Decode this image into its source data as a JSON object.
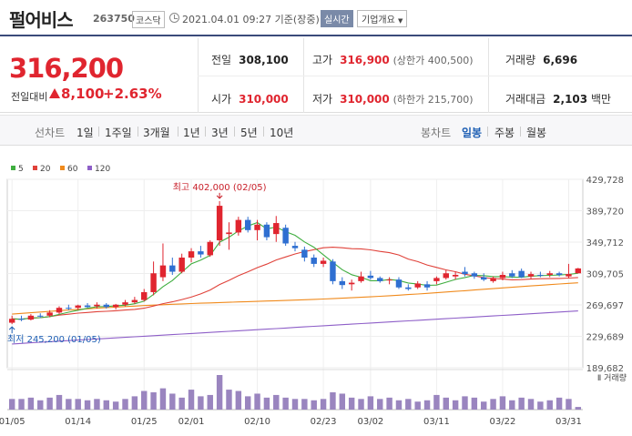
{
  "header": {
    "company": "펄어비스",
    "code": "263750",
    "market": "코스닥",
    "time": "2021.04.01 09:27 기준(장중)",
    "realtime": "실시간",
    "company_info": "기업개요",
    "icons": [
      "clock-icon",
      "chevron-down-icon"
    ]
  },
  "price": {
    "current": "316,200",
    "change_label": "전일대비",
    "change": "8,100",
    "change_rate": "+2.63%",
    "direction_icon": "triangle-up-icon",
    "color_up": "#e0252f"
  },
  "stats": {
    "prev_close_label": "전일",
    "prev_close": "308,100",
    "high_label": "고가",
    "high": "316,900",
    "upper_limit": "(상한가 400,500)",
    "volume_label": "거래량",
    "volume": "6,696",
    "open_label": "시가",
    "open": "310,000",
    "low_label": "저가",
    "low": "310,000",
    "lower_limit": "(하한가 215,700)",
    "amount_label": "거래대금",
    "amount": "2,103",
    "amount_unit": "백만"
  },
  "period": {
    "line_label": "선차트",
    "line_items": [
      "1일",
      "1주일",
      "3개월",
      "1년",
      "3년",
      "5년",
      "10년"
    ],
    "candle_label": "봉차트",
    "candle_items": [
      "일봉",
      "주봉",
      "월봉"
    ],
    "active": "일봉"
  },
  "chart_data": {
    "type": "candlestick",
    "legend": [
      {
        "name": "5",
        "color": "#3fae3f"
      },
      {
        "name": "20",
        "color": "#e0423a"
      },
      {
        "name": "60",
        "color": "#f08a1c"
      },
      {
        "name": "120",
        "color": "#8e5fc8"
      }
    ],
    "y_ticks": [
      429728,
      389720,
      349712,
      309705,
      269697,
      229689,
      189682
    ],
    "ylim": [
      189682,
      429728
    ],
    "x_tick_labels": [
      "01/05",
      "01/14",
      "01/25",
      "02/01",
      "02/10",
      "02/23",
      "03/02",
      "03/11",
      "03/22",
      "03/31"
    ],
    "x_tick_index": [
      0,
      7,
      14,
      19,
      26,
      33,
      38,
      45,
      52,
      59
    ],
    "annotation_high": "최고 402,000 (02/05)",
    "annotation_low": "최저 245,200 (01/05)",
    "volume_label": "거래량",
    "candles": [
      {
        "o": 247000,
        "h": 256000,
        "l": 245200,
        "c": 252000
      },
      {
        "o": 252000,
        "h": 256000,
        "l": 249000,
        "c": 251000
      },
      {
        "o": 251000,
        "h": 258000,
        "l": 250000,
        "c": 256000
      },
      {
        "o": 256000,
        "h": 259000,
        "l": 253000,
        "c": 255000
      },
      {
        "o": 256000,
        "h": 263000,
        "l": 254000,
        "c": 260000
      },
      {
        "o": 260000,
        "h": 268000,
        "l": 258000,
        "c": 266000
      },
      {
        "o": 266000,
        "h": 270000,
        "l": 263000,
        "c": 265000
      },
      {
        "o": 266000,
        "h": 270000,
        "l": 263000,
        "c": 269000
      },
      {
        "o": 269000,
        "h": 272000,
        "l": 266000,
        "c": 267000
      },
      {
        "o": 268000,
        "h": 273000,
        "l": 265000,
        "c": 270000
      },
      {
        "o": 270000,
        "h": 272000,
        "l": 265000,
        "c": 267000
      },
      {
        "o": 267000,
        "h": 271000,
        "l": 264000,
        "c": 270000
      },
      {
        "o": 270000,
        "h": 276000,
        "l": 268000,
        "c": 273000
      },
      {
        "o": 273000,
        "h": 280000,
        "l": 271000,
        "c": 276000
      },
      {
        "o": 276000,
        "h": 290000,
        "l": 274000,
        "c": 286000
      },
      {
        "o": 286000,
        "h": 325000,
        "l": 282000,
        "c": 310000
      },
      {
        "o": 305000,
        "h": 348000,
        "l": 300000,
        "c": 320000
      },
      {
        "o": 320000,
        "h": 330000,
        "l": 308000,
        "c": 312000
      },
      {
        "o": 312000,
        "h": 335000,
        "l": 310000,
        "c": 330000
      },
      {
        "o": 330000,
        "h": 342000,
        "l": 324000,
        "c": 338000
      },
      {
        "o": 338000,
        "h": 345000,
        "l": 330000,
        "c": 334000
      },
      {
        "o": 333000,
        "h": 352000,
        "l": 331000,
        "c": 350000
      },
      {
        "o": 352000,
        "h": 402000,
        "l": 345000,
        "c": 396000
      },
      {
        "o": 360000,
        "h": 375000,
        "l": 340000,
        "c": 362000
      },
      {
        "o": 362000,
        "h": 382000,
        "l": 358000,
        "c": 378000
      },
      {
        "o": 378000,
        "h": 382000,
        "l": 362000,
        "c": 365000
      },
      {
        "o": 365000,
        "h": 378000,
        "l": 352000,
        "c": 372000
      },
      {
        "o": 372000,
        "h": 375000,
        "l": 352000,
        "c": 356000
      },
      {
        "o": 360000,
        "h": 383000,
        "l": 350000,
        "c": 374000
      },
      {
        "o": 368000,
        "h": 372000,
        "l": 345000,
        "c": 348000
      },
      {
        "o": 345000,
        "h": 350000,
        "l": 338000,
        "c": 342000
      },
      {
        "o": 340000,
        "h": 344000,
        "l": 325000,
        "c": 330000
      },
      {
        "o": 330000,
        "h": 334000,
        "l": 318000,
        "c": 322000
      },
      {
        "o": 322000,
        "h": 330000,
        "l": 318000,
        "c": 326000
      },
      {
        "o": 325000,
        "h": 328000,
        "l": 296000,
        "c": 300000
      },
      {
        "o": 300000,
        "h": 305000,
        "l": 290000,
        "c": 295000
      },
      {
        "o": 296000,
        "h": 302000,
        "l": 288000,
        "c": 298000
      },
      {
        "o": 300000,
        "h": 312000,
        "l": 298000,
        "c": 306000
      },
      {
        "o": 307000,
        "h": 313000,
        "l": 302000,
        "c": 304000
      },
      {
        "o": 304000,
        "h": 306000,
        "l": 298000,
        "c": 300000
      },
      {
        "o": 302000,
        "h": 305000,
        "l": 296000,
        "c": 302000
      },
      {
        "o": 302000,
        "h": 305000,
        "l": 290000,
        "c": 292000
      },
      {
        "o": 292000,
        "h": 296000,
        "l": 288000,
        "c": 290000
      },
      {
        "o": 292000,
        "h": 300000,
        "l": 290000,
        "c": 297000
      },
      {
        "o": 296000,
        "h": 300000,
        "l": 288000,
        "c": 292000
      },
      {
        "o": 300000,
        "h": 306000,
        "l": 296000,
        "c": 304000
      },
      {
        "o": 304000,
        "h": 314000,
        "l": 302000,
        "c": 310000
      },
      {
        "o": 306000,
        "h": 312000,
        "l": 302000,
        "c": 308000
      },
      {
        "o": 312000,
        "h": 318000,
        "l": 306000,
        "c": 309000
      },
      {
        "o": 310000,
        "h": 312000,
        "l": 303000,
        "c": 306000
      },
      {
        "o": 305000,
        "h": 310000,
        "l": 300000,
        "c": 302000
      },
      {
        "o": 300000,
        "h": 306000,
        "l": 298000,
        "c": 304000
      },
      {
        "o": 304000,
        "h": 312000,
        "l": 301000,
        "c": 308000
      },
      {
        "o": 310000,
        "h": 314000,
        "l": 304000,
        "c": 306000
      },
      {
        "o": 313000,
        "h": 316000,
        "l": 304000,
        "c": 305000
      },
      {
        "o": 306000,
        "h": 312000,
        "l": 303000,
        "c": 309000
      },
      {
        "o": 308000,
        "h": 312000,
        "l": 305000,
        "c": 307000
      },
      {
        "o": 308000,
        "h": 313000,
        "l": 305000,
        "c": 310000
      },
      {
        "o": 310000,
        "h": 312000,
        "l": 306000,
        "c": 308000
      },
      {
        "o": 306000,
        "h": 322000,
        "l": 304000,
        "c": 309000
      },
      {
        "o": 310000,
        "h": 316900,
        "l": 310000,
        "c": 316200
      }
    ],
    "volumes": [
      16,
      16,
      18,
      14,
      18,
      22,
      16,
      16,
      14,
      16,
      14,
      12,
      16,
      20,
      28,
      26,
      32,
      24,
      18,
      30,
      20,
      22,
      52,
      30,
      28,
      20,
      24,
      18,
      22,
      18,
      16,
      16,
      14,
      16,
      26,
      24,
      18,
      16,
      20,
      16,
      18,
      14,
      16,
      12,
      14,
      22,
      18,
      14,
      20,
      18,
      12,
      16,
      20,
      14,
      18,
      16,
      12,
      14,
      18,
      16,
      4
    ]
  }
}
